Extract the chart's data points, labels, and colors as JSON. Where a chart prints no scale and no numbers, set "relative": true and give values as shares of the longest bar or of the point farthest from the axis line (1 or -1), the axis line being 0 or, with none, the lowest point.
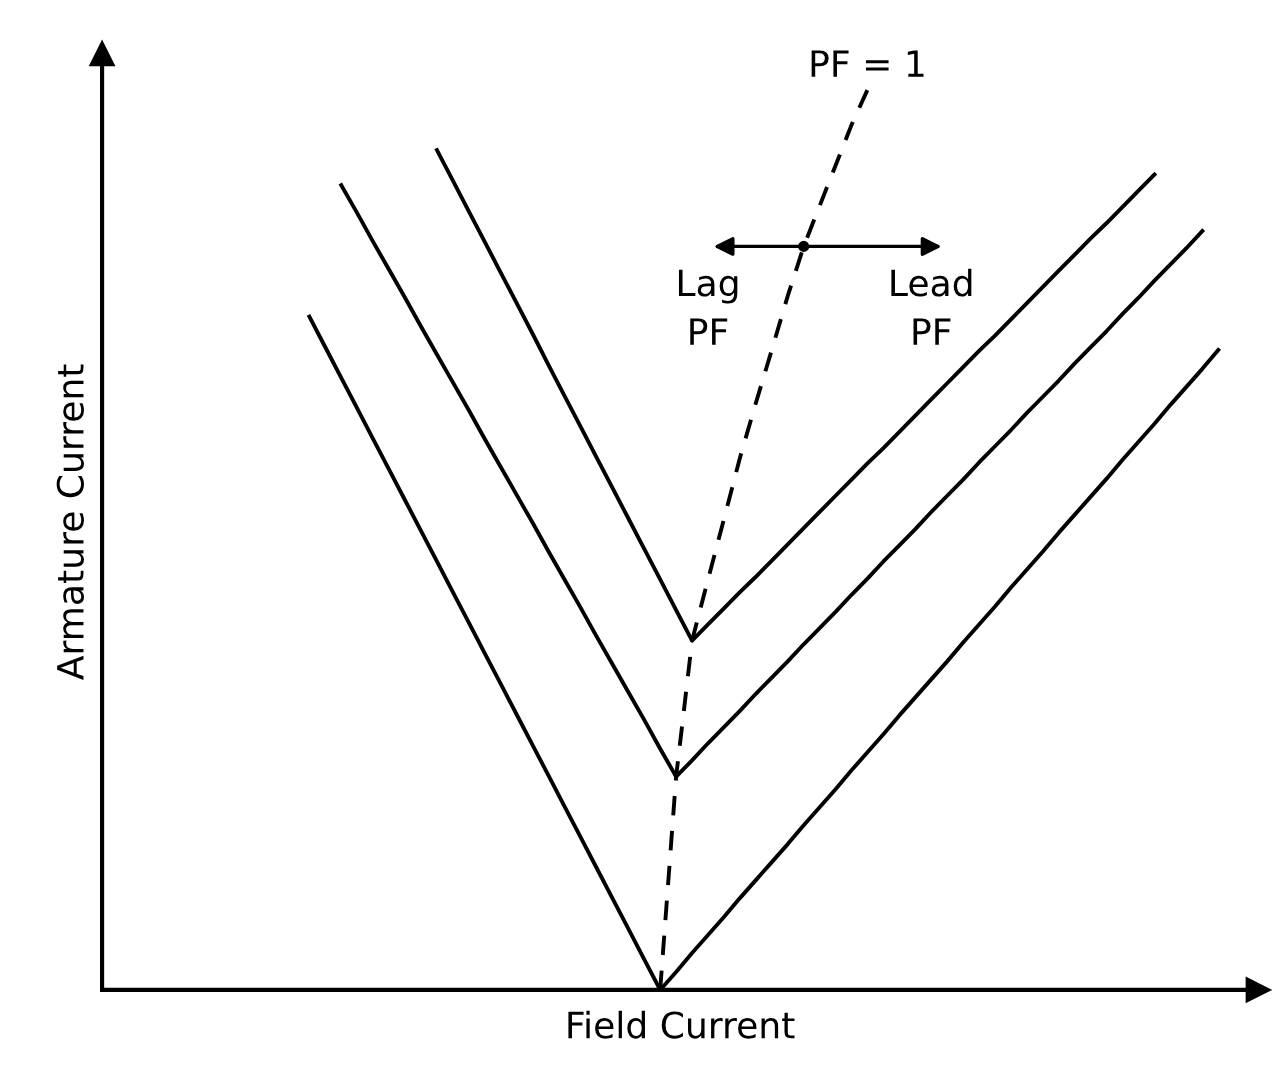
{
  "chart_data": {
    "type": "line",
    "relative": true,
    "xlabel": "Field Current",
    "ylabel": "Armature Current",
    "line_style": "solid",
    "marker": "none",
    "categories": [
      null,
      null,
      null,
      null,
      null,
      null,
      null,
      null,
      null,
      null,
      null,
      null,
      null,
      null,
      null,
      null,
      null,
      null,
      null,
      null,
      null,
      null,
      null,
      null,
      null,
      null,
      null,
      null,
      null,
      null,
      null,
      null,
      null,
      null,
      null,
      null,
      null,
      null,
      null,
      null,
      null,
      null,
      null,
      null,
      null,
      null,
      null,
      null,
      null,
      null,
      null,
      null,
      null,
      null,
      null,
      null,
      null,
      null,
      null,
      null,
      null,
      null,
      null,
      null,
      null,
      null,
      null,
      null,
      null,
      null,
      null,
      null,
      null
    ],
    "series": [
      {
        "color": "#000000",
        "values": [
          null,
          null,
          null,
          null,
          null,
          null,
          null,
          null,
          null,
          null,
          null,
          null,
          null,
          0.748,
          0.714,
          0.68,
          0.646,
          0.612,
          0.578,
          0.544,
          0.51,
          0.476,
          0.442,
          0.408,
          0.374,
          0.34,
          0.306,
          0.272,
          0.238,
          0.204,
          0.17,
          0.136,
          0.102,
          0.068,
          0.034,
          0.0,
          0.02,
          0.041,
          0.061,
          0.081,
          0.102,
          0.122,
          0.142,
          0.162,
          0.183,
          0.203,
          0.223,
          0.244,
          0.264,
          0.284,
          0.305,
          0.325,
          0.345,
          0.365,
          0.386,
          0.406,
          0.426,
          0.447,
          0.467,
          0.487,
          0.508,
          0.528,
          0.548,
          0.568,
          0.589,
          0.609,
          0.629,
          0.65,
          0.67,
          0.69,
          0.711,
          null,
          null
        ]
      },
      {
        "color": "#000000",
        "values": [
          null,
          null,
          null,
          null,
          null,
          null,
          null,
          null,
          null,
          null,
          null,
          null,
          null,
          null,
          null,
          0.894,
          0.863,
          0.831,
          0.8,
          0.769,
          0.737,
          0.706,
          0.675,
          0.644,
          0.612,
          0.581,
          0.55,
          0.519,
          0.487,
          0.456,
          0.425,
          0.393,
          0.362,
          0.331,
          0.3,
          0.268,
          0.237,
          0.255,
          0.274,
          0.292,
          0.31,
          0.329,
          0.347,
          0.365,
          0.384,
          0.402,
          0.42,
          0.439,
          0.457,
          0.476,
          0.494,
          0.512,
          0.531,
          0.549,
          0.567,
          0.586,
          0.604,
          0.622,
          0.641,
          0.659,
          0.677,
          0.696,
          0.714,
          0.732,
          0.751,
          0.769,
          0.788,
          0.806,
          0.824,
          0.843,
          null,
          null,
          null
        ]
      },
      {
        "color": "#000000",
        "values": [
          null,
          null,
          null,
          null,
          null,
          null,
          null,
          null,
          null,
          null,
          null,
          null,
          null,
          null,
          null,
          null,
          null,
          null,
          null,
          null,
          null,
          0.933,
          0.899,
          0.865,
          0.831,
          0.797,
          0.763,
          0.729,
          0.694,
          0.66,
          0.626,
          0.592,
          0.558,
          0.524,
          0.49,
          0.456,
          0.422,
          0.388,
          0.406,
          0.424,
          0.442,
          0.459,
          0.477,
          0.495,
          0.513,
          0.531,
          0.549,
          0.567,
          0.585,
          0.602,
          0.62,
          0.638,
          0.656,
          0.674,
          0.692,
          0.71,
          0.727,
          0.745,
          0.763,
          0.781,
          0.799,
          0.817,
          0.835,
          0.852,
          0.87,
          0.888,
          0.906,
          null,
          null,
          null,
          null,
          null,
          null
        ]
      },
      {
        "color": "#000000",
        "line_style": "dashed",
        "values": [
          null,
          null,
          null,
          null,
          null,
          null,
          null,
          null,
          null,
          null,
          null,
          null,
          null,
          null,
          null,
          null,
          null,
          null,
          null,
          null,
          null,
          null,
          null,
          null,
          null,
          null,
          null,
          null,
          null,
          null,
          null,
          null,
          null,
          null,
          null,
          0.0,
          0.237,
          0.388,
          0.456,
          0.523,
          0.591,
          0.652,
          0.711,
          0.771,
          0.826,
          0.871,
          0.916,
          0.961,
          1.0,
          null,
          null,
          null,
          null,
          null,
          null,
          null,
          null,
          null,
          null,
          null,
          null,
          null,
          null,
          null,
          null,
          null,
          null,
          null,
          null,
          null,
          null,
          null,
          null
        ]
      }
    ],
    "annotations": [
      "PF = 1",
      "Lag\nPF",
      "Lead\nPF"
    ]
  }
}
